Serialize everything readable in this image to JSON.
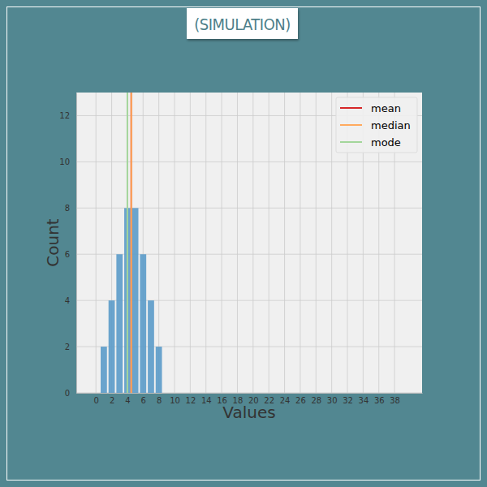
{
  "chart_data": {
    "type": "bar",
    "title": "(SIMULATION)",
    "x_label": "Values",
    "y_label": "Count",
    "x": [
      1,
      2,
      3,
      4,
      5,
      6,
      7,
      8
    ],
    "values": [
      2,
      4,
      6,
      8,
      8,
      6,
      4,
      2
    ],
    "color": "#5b9bc9",
    "xlim": [
      -2.5,
      41.5
    ],
    "ylim": [
      0,
      13
    ],
    "xticks": [
      0,
      2,
      4,
      6,
      8,
      10,
      12,
      14,
      16,
      18,
      20,
      22,
      24,
      26,
      28,
      30,
      32,
      34,
      36,
      38
    ],
    "yticks": [
      0,
      2,
      4,
      6,
      8,
      10,
      12
    ],
    "grid": true,
    "legend": "upper right",
    "vlines": [
      {
        "name": "mean",
        "color": "#d62728",
        "value": 4.5
      },
      {
        "name": "median",
        "color": "#ffaa5e",
        "value": 4.5
      },
      {
        "name": "mode",
        "color": "#a3d69b",
        "value": 4
      }
    ]
  }
}
